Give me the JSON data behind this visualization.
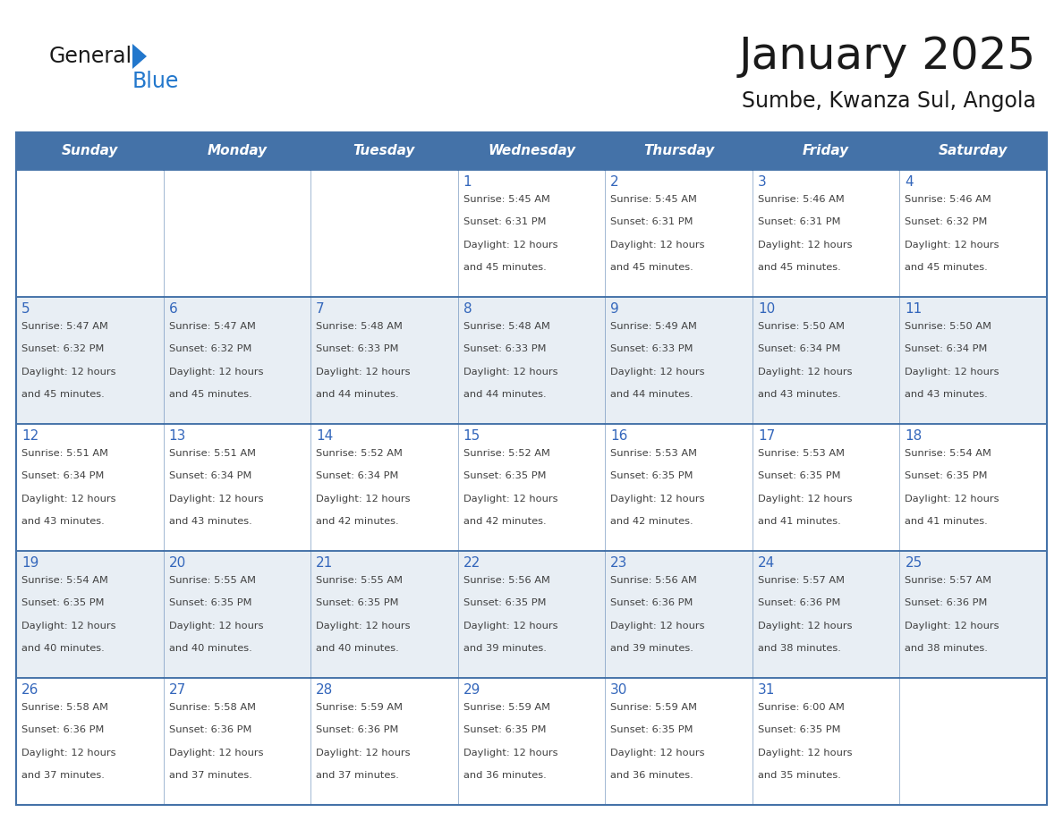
{
  "title": "January 2025",
  "subtitle": "Sumbe, Kwanza Sul, Angola",
  "days_of_week": [
    "Sunday",
    "Monday",
    "Tuesday",
    "Wednesday",
    "Thursday",
    "Friday",
    "Saturday"
  ],
  "header_bg": "#4472A8",
  "header_text_color": "#FFFFFF",
  "cell_bg_odd": "#FFFFFF",
  "cell_bg_even": "#E8EEF4",
  "border_color": "#4472A8",
  "day_number_color": "#3366BB",
  "text_color": "#404040",
  "title_color": "#1a1a1a",
  "logo_general_color": "#1a1a1a",
  "logo_blue_color": "#2277CC",
  "logo_triangle_color": "#2277CC",
  "calendar_data": [
    [
      null,
      null,
      null,
      {
        "day": 1,
        "sunrise": "5:45 AM",
        "sunset": "6:31 PM",
        "daylight_hours": 12,
        "daylight_minutes": 45
      },
      {
        "day": 2,
        "sunrise": "5:45 AM",
        "sunset": "6:31 PM",
        "daylight_hours": 12,
        "daylight_minutes": 45
      },
      {
        "day": 3,
        "sunrise": "5:46 AM",
        "sunset": "6:31 PM",
        "daylight_hours": 12,
        "daylight_minutes": 45
      },
      {
        "day": 4,
        "sunrise": "5:46 AM",
        "sunset": "6:32 PM",
        "daylight_hours": 12,
        "daylight_minutes": 45
      }
    ],
    [
      {
        "day": 5,
        "sunrise": "5:47 AM",
        "sunset": "6:32 PM",
        "daylight_hours": 12,
        "daylight_minutes": 45
      },
      {
        "day": 6,
        "sunrise": "5:47 AM",
        "sunset": "6:32 PM",
        "daylight_hours": 12,
        "daylight_minutes": 45
      },
      {
        "day": 7,
        "sunrise": "5:48 AM",
        "sunset": "6:33 PM",
        "daylight_hours": 12,
        "daylight_minutes": 44
      },
      {
        "day": 8,
        "sunrise": "5:48 AM",
        "sunset": "6:33 PM",
        "daylight_hours": 12,
        "daylight_minutes": 44
      },
      {
        "day": 9,
        "sunrise": "5:49 AM",
        "sunset": "6:33 PM",
        "daylight_hours": 12,
        "daylight_minutes": 44
      },
      {
        "day": 10,
        "sunrise": "5:50 AM",
        "sunset": "6:34 PM",
        "daylight_hours": 12,
        "daylight_minutes": 43
      },
      {
        "day": 11,
        "sunrise": "5:50 AM",
        "sunset": "6:34 PM",
        "daylight_hours": 12,
        "daylight_minutes": 43
      }
    ],
    [
      {
        "day": 12,
        "sunrise": "5:51 AM",
        "sunset": "6:34 PM",
        "daylight_hours": 12,
        "daylight_minutes": 43
      },
      {
        "day": 13,
        "sunrise": "5:51 AM",
        "sunset": "6:34 PM",
        "daylight_hours": 12,
        "daylight_minutes": 43
      },
      {
        "day": 14,
        "sunrise": "5:52 AM",
        "sunset": "6:34 PM",
        "daylight_hours": 12,
        "daylight_minutes": 42
      },
      {
        "day": 15,
        "sunrise": "5:52 AM",
        "sunset": "6:35 PM",
        "daylight_hours": 12,
        "daylight_minutes": 42
      },
      {
        "day": 16,
        "sunrise": "5:53 AM",
        "sunset": "6:35 PM",
        "daylight_hours": 12,
        "daylight_minutes": 42
      },
      {
        "day": 17,
        "sunrise": "5:53 AM",
        "sunset": "6:35 PM",
        "daylight_hours": 12,
        "daylight_minutes": 41
      },
      {
        "day": 18,
        "sunrise": "5:54 AM",
        "sunset": "6:35 PM",
        "daylight_hours": 12,
        "daylight_minutes": 41
      }
    ],
    [
      {
        "day": 19,
        "sunrise": "5:54 AM",
        "sunset": "6:35 PM",
        "daylight_hours": 12,
        "daylight_minutes": 40
      },
      {
        "day": 20,
        "sunrise": "5:55 AM",
        "sunset": "6:35 PM",
        "daylight_hours": 12,
        "daylight_minutes": 40
      },
      {
        "day": 21,
        "sunrise": "5:55 AM",
        "sunset": "6:35 PM",
        "daylight_hours": 12,
        "daylight_minutes": 40
      },
      {
        "day": 22,
        "sunrise": "5:56 AM",
        "sunset": "6:35 PM",
        "daylight_hours": 12,
        "daylight_minutes": 39
      },
      {
        "day": 23,
        "sunrise": "5:56 AM",
        "sunset": "6:36 PM",
        "daylight_hours": 12,
        "daylight_minutes": 39
      },
      {
        "day": 24,
        "sunrise": "5:57 AM",
        "sunset": "6:36 PM",
        "daylight_hours": 12,
        "daylight_minutes": 38
      },
      {
        "day": 25,
        "sunrise": "5:57 AM",
        "sunset": "6:36 PM",
        "daylight_hours": 12,
        "daylight_minutes": 38
      }
    ],
    [
      {
        "day": 26,
        "sunrise": "5:58 AM",
        "sunset": "6:36 PM",
        "daylight_hours": 12,
        "daylight_minutes": 37
      },
      {
        "day": 27,
        "sunrise": "5:58 AM",
        "sunset": "6:36 PM",
        "daylight_hours": 12,
        "daylight_minutes": 37
      },
      {
        "day": 28,
        "sunrise": "5:59 AM",
        "sunset": "6:36 PM",
        "daylight_hours": 12,
        "daylight_minutes": 37
      },
      {
        "day": 29,
        "sunrise": "5:59 AM",
        "sunset": "6:35 PM",
        "daylight_hours": 12,
        "daylight_minutes": 36
      },
      {
        "day": 30,
        "sunrise": "5:59 AM",
        "sunset": "6:35 PM",
        "daylight_hours": 12,
        "daylight_minutes": 36
      },
      {
        "day": 31,
        "sunrise": "6:00 AM",
        "sunset": "6:35 PM",
        "daylight_hours": 12,
        "daylight_minutes": 35
      },
      null
    ]
  ]
}
